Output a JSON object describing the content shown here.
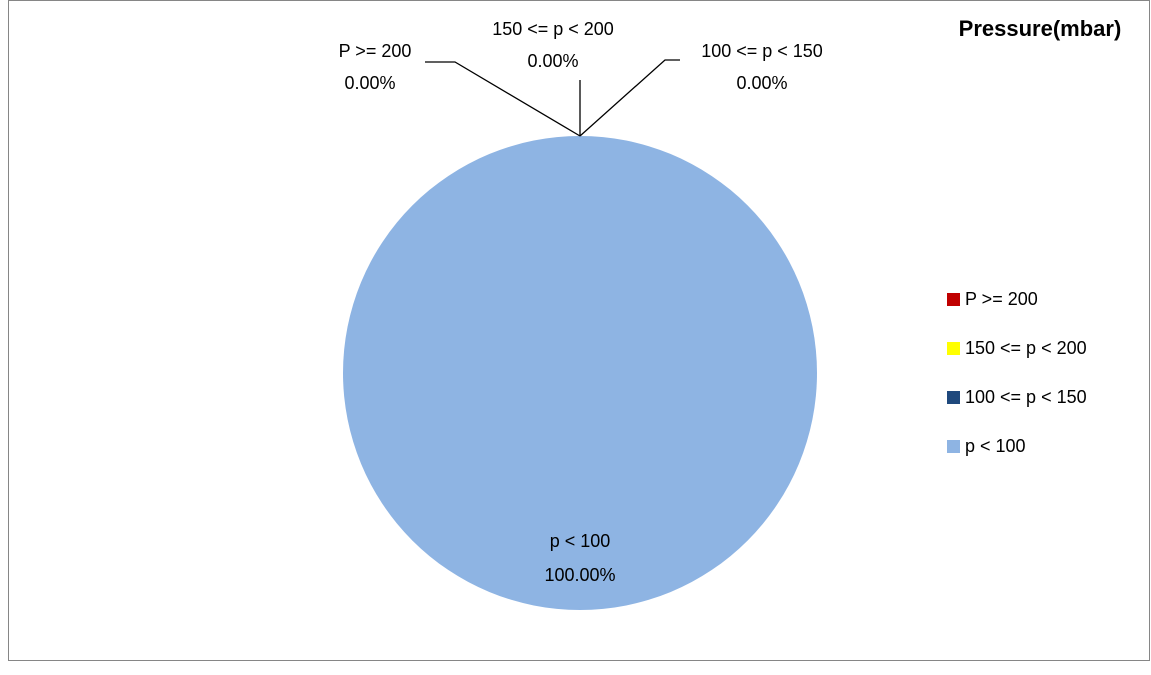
{
  "chart_data": {
    "type": "pie",
    "title": "Pressure(mbar)",
    "categories": [
      "P >= 200",
      "150 <= p < 200",
      "100 <= p < 150",
      "p < 100"
    ],
    "values": [
      0,
      0,
      0,
      100
    ],
    "value_labels": [
      "0.00%",
      "0.00%",
      "0.00%",
      "100.00%"
    ],
    "colors": [
      "#c00000",
      "#ffff00",
      "#1f497d",
      "#8eb4e3"
    ],
    "legend": "right"
  }
}
